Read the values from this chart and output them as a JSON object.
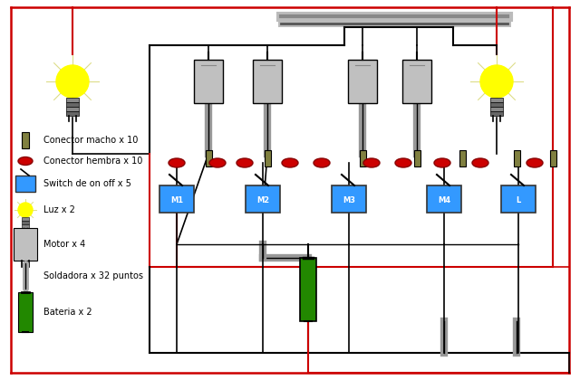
{
  "bg_color": "#ffffff",
  "wire_black": "black",
  "wire_red": "#cc0000",
  "wire_gray": "#aaaaaa",
  "motor_color": "#c0c0c0",
  "switch_color": "#3399ff",
  "battery_color": "#228800",
  "light_color": "#ffff00",
  "connector_male_color": "#808040",
  "connector_female_color": "#cc0000",
  "legend_items": [
    {
      "label": "Conector macho x 10",
      "color": "#808040",
      "shape": "male"
    },
    {
      "label": "Conector hembra x 10",
      "color": "#cc0000",
      "shape": "female"
    },
    {
      "label": "Switch de on off x 5",
      "color": "#3399ff",
      "shape": "switch"
    },
    {
      "label": "Luz x 2",
      "color": "#ffff00",
      "shape": "light"
    },
    {
      "label": "Motor x 4",
      "color": "#c0c0c0",
      "shape": "motor"
    },
    {
      "label": "Soldadora x 32 puntos",
      "color": "#aaaaaa",
      "shape": "solder"
    },
    {
      "label": "Bateria x 2",
      "color": "#228800",
      "shape": "battery"
    }
  ]
}
